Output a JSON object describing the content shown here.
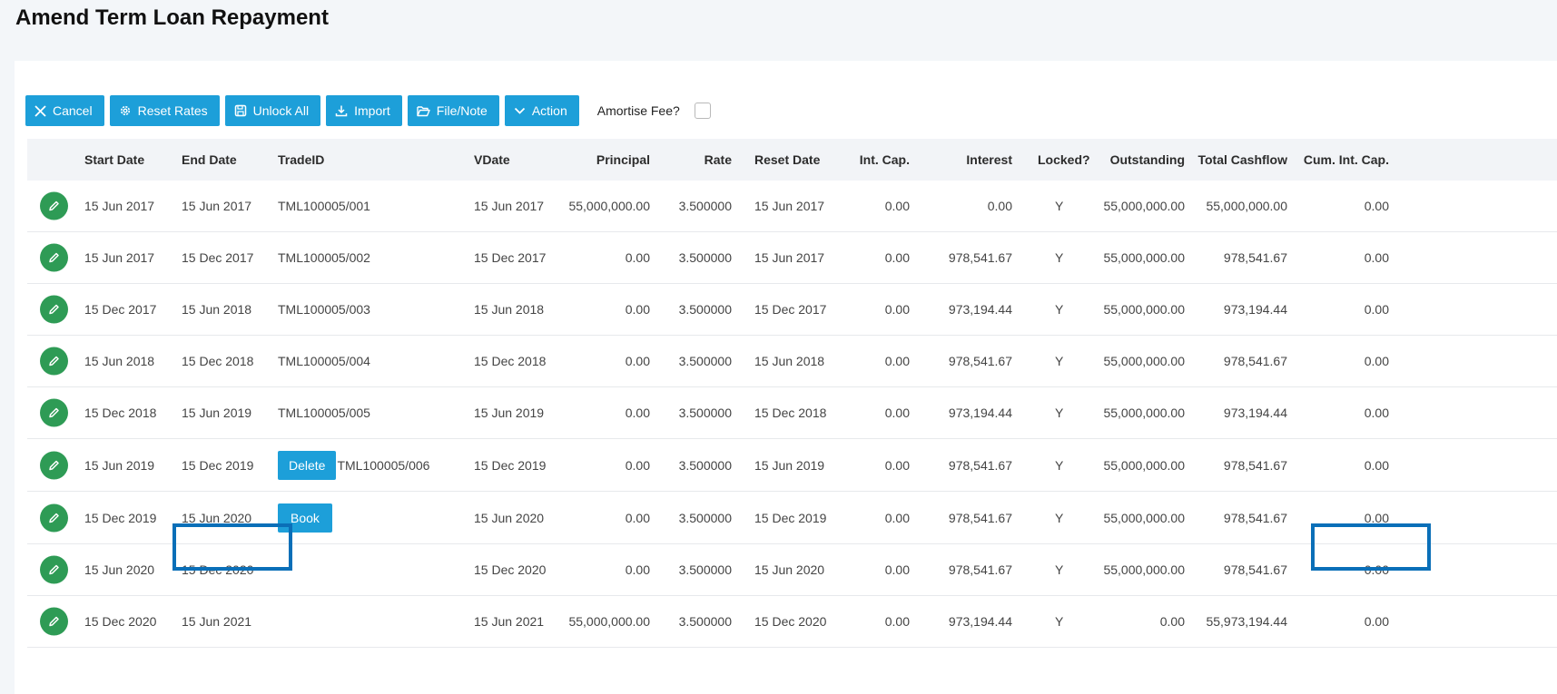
{
  "page": {
    "title": "Amend Term Loan Repayment"
  },
  "toolbar": {
    "cancel": "Cancel",
    "reset_rates": "Reset Rates",
    "unlock_all": "Unlock All",
    "import": "Import",
    "file_note": "File/Note",
    "action": "Action",
    "amortise_fee_label": "Amortise Fee?",
    "amortise_fee_checked": false
  },
  "columns": {
    "start_date": "Start Date",
    "end_date": "End Date",
    "trade_id": "TradeID",
    "vdate": "VDate",
    "principal": "Principal",
    "rate": "Rate",
    "reset_date": "Reset Date",
    "int_cap": "Int. Cap.",
    "interest": "Interest",
    "locked": "Locked?",
    "outstanding": "Outstanding",
    "total_cashflow": "Total Cashflow",
    "cum_int_cap": "Cum. Int. Cap."
  },
  "row_actions": {
    "delete": "Delete",
    "book": "Book"
  },
  "rows": [
    {
      "start_date": "15 Jun 2017",
      "end_date": "15 Jun 2017",
      "trade_id": "TML100005/001",
      "vdate": "15 Jun 2017",
      "principal": "55,000,000.00",
      "rate": "3.500000",
      "reset_date": "15 Jun 2017",
      "int_cap": "0.00",
      "interest": "0.00",
      "locked": "Y",
      "outstanding": "55,000,000.00",
      "total_cashflow": "55,000,000.00",
      "cum_int_cap": "0.00"
    },
    {
      "start_date": "15 Jun 2017",
      "end_date": "15 Dec 2017",
      "trade_id": "TML100005/002",
      "vdate": "15 Dec 2017",
      "principal": "0.00",
      "rate": "3.500000",
      "reset_date": "15 Jun 2017",
      "int_cap": "0.00",
      "interest": "978,541.67",
      "locked": "Y",
      "outstanding": "55,000,000.00",
      "total_cashflow": "978,541.67",
      "cum_int_cap": "0.00"
    },
    {
      "start_date": "15 Dec 2017",
      "end_date": "15 Jun 2018",
      "trade_id": "TML100005/003",
      "vdate": "15 Jun 2018",
      "principal": "0.00",
      "rate": "3.500000",
      "reset_date": "15 Dec 2017",
      "int_cap": "0.00",
      "interest": "973,194.44",
      "locked": "Y",
      "outstanding": "55,000,000.00",
      "total_cashflow": "973,194.44",
      "cum_int_cap": "0.00"
    },
    {
      "start_date": "15 Jun 2018",
      "end_date": "15 Dec 2018",
      "trade_id": "TML100005/004",
      "vdate": "15 Dec 2018",
      "principal": "0.00",
      "rate": "3.500000",
      "reset_date": "15 Jun 2018",
      "int_cap": "0.00",
      "interest": "978,541.67",
      "locked": "Y",
      "outstanding": "55,000,000.00",
      "total_cashflow": "978,541.67",
      "cum_int_cap": "0.00"
    },
    {
      "start_date": "15 Dec 2018",
      "end_date": "15 Jun 2019",
      "trade_id": "TML100005/005",
      "vdate": "15 Jun 2019",
      "principal": "0.00",
      "rate": "3.500000",
      "reset_date": "15 Dec 2018",
      "int_cap": "0.00",
      "interest": "973,194.44",
      "locked": "Y",
      "outstanding": "55,000,000.00",
      "total_cashflow": "973,194.44",
      "cum_int_cap": "0.00"
    },
    {
      "start_date": "15 Jun 2019",
      "end_date": "15 Dec 2019",
      "trade_id": "TML100005/006",
      "vdate": "15 Dec 2019",
      "principal": "0.00",
      "rate": "3.500000",
      "reset_date": "15 Jun 2019",
      "int_cap": "0.00",
      "interest": "978,541.67",
      "locked": "Y",
      "outstanding": "55,000,000.00",
      "total_cashflow": "978,541.67",
      "cum_int_cap": "0.00"
    },
    {
      "start_date": "15 Dec 2019",
      "end_date": "15 Jun 2020",
      "trade_id": "",
      "vdate": "15 Jun 2020",
      "principal": "0.00",
      "rate": "3.500000",
      "reset_date": "15 Dec 2019",
      "int_cap": "0.00",
      "interest": "978,541.67",
      "locked": "Y",
      "outstanding": "55,000,000.00",
      "total_cashflow": "978,541.67",
      "cum_int_cap": "0.00"
    },
    {
      "start_date": "15 Jun 2020",
      "end_date": "15 Dec 2020",
      "trade_id": "",
      "vdate": "15 Dec 2020",
      "principal": "0.00",
      "rate": "3.500000",
      "reset_date": "15 Jun 2020",
      "int_cap": "0.00",
      "interest": "978,541.67",
      "locked": "Y",
      "outstanding": "55,000,000.00",
      "total_cashflow": "978,541.67",
      "cum_int_cap": "0.00"
    },
    {
      "start_date": "15 Dec 2020",
      "end_date": "15 Jun 2021",
      "trade_id": "",
      "vdate": "15 Jun 2021",
      "principal": "55,000,000.00",
      "rate": "3.500000",
      "reset_date": "15 Dec 2020",
      "int_cap": "0.00",
      "interest": "973,194.44",
      "locked": "Y",
      "outstanding": "0.00",
      "total_cashflow": "55,973,194.44",
      "cum_int_cap": "0.00"
    }
  ],
  "colors": {
    "primary": "#1d9fd9",
    "edit": "#2e9b55",
    "highlight": "#0a6fb8"
  }
}
